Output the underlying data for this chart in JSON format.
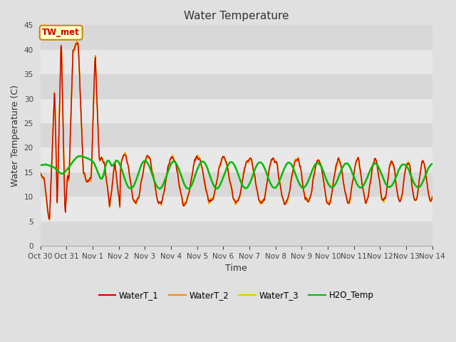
{
  "title": "Water Temperature",
  "xlabel": "Time",
  "ylabel": "Water Temperature (C)",
  "ylim": [
    0,
    45
  ],
  "yticks": [
    0,
    5,
    10,
    15,
    20,
    25,
    30,
    35,
    40,
    45
  ],
  "bg_bands": [
    [
      0,
      5,
      "#d8d8d8"
    ],
    [
      5,
      10,
      "#e8e8e8"
    ],
    [
      10,
      15,
      "#d8d8d8"
    ],
    [
      15,
      20,
      "#e8e8e8"
    ],
    [
      20,
      25,
      "#d8d8d8"
    ],
    [
      25,
      30,
      "#e8e8e8"
    ],
    [
      30,
      35,
      "#d8d8d8"
    ],
    [
      35,
      40,
      "#e8e8e8"
    ],
    [
      40,
      45,
      "#d8d8d8"
    ]
  ],
  "series": {
    "WaterT_1": {
      "color": "#cc0000",
      "lw": 1.0
    },
    "WaterT_2": {
      "color": "#ff8800",
      "lw": 1.2
    },
    "WaterT_3": {
      "color": "#ddcc00",
      "lw": 1.2
    },
    "H2O_Temp": {
      "color": "#00bb00",
      "lw": 1.8
    }
  },
  "xtick_labels": [
    "Oct 30",
    "Oct 31",
    "Nov 1",
    "Nov 2",
    "Nov 3",
    "Nov 4",
    "Nov 5",
    "Nov 6",
    "Nov 7",
    "Nov 8",
    "Nov 9",
    "Nov 10",
    "Nov 11",
    "Nov 12",
    "Nov 13",
    "Nov 14"
  ],
  "annotation_text": "TW_met",
  "annotation_color": "#cc0000",
  "annotation_bg": "#ffffcc",
  "annotation_border": "#cc8800",
  "fig_bg": "#e0e0e0"
}
